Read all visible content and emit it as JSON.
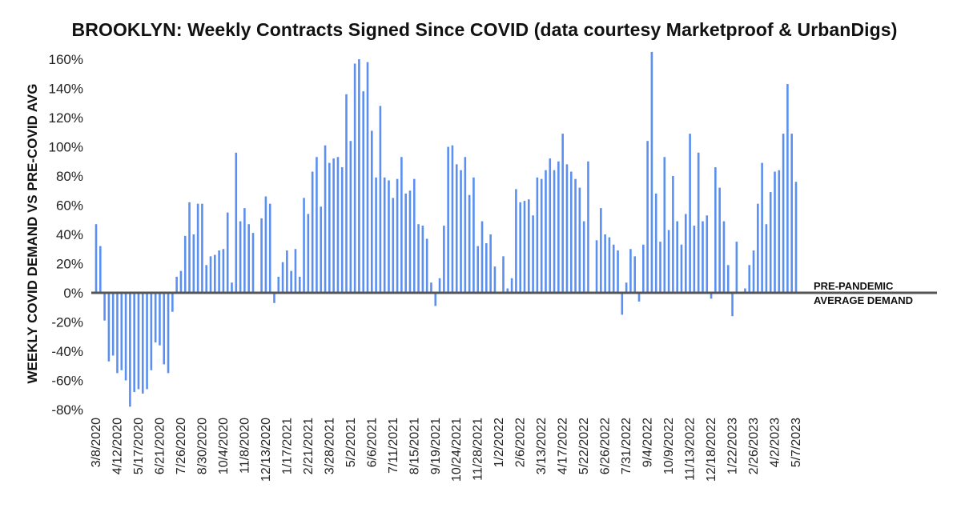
{
  "chart_data": {
    "type": "bar",
    "title": "BROOKLYN: Weekly Contracts Signed Since COVID (data courtesy Marketproof & UrbanDigs)",
    "ylabel": "WEEKLY COVID DEMAND VS PRE-COVID AVG",
    "xlabel": "",
    "ylim": [
      -80,
      165
    ],
    "y_ticks": [
      "160%",
      "140%",
      "120%",
      "100%",
      "80%",
      "60%",
      "40%",
      "20%",
      "0%",
      "-20%",
      "-40%",
      "-60%",
      "-80%"
    ],
    "y_tick_values": [
      160,
      140,
      120,
      100,
      80,
      60,
      40,
      20,
      0,
      -20,
      -40,
      -60,
      -80
    ],
    "x_tick_labels": [
      "3/8/2020",
      "4/12/2020",
      "5/17/2020",
      "6/21/2020",
      "7/26/2020",
      "8/30/2020",
      "10/4/2020",
      "11/8/2020",
      "12/13/2020",
      "1/17/2021",
      "2/21/2021",
      "3/28/2021",
      "5/2/2021",
      "6/6/2021",
      "7/11/2021",
      "8/15/2021",
      "9/19/2021",
      "10/24/2021",
      "11/28/2021",
      "1/2/2022",
      "2/6/2022",
      "3/13/2022",
      "4/17/2022",
      "5/22/2022",
      "6/26/2022",
      "7/31/2022",
      "9/4/2022",
      "10/9/2022",
      "11/13/2022",
      "12/18/2022",
      "1/22/2023",
      "2/26/2023",
      "4/2/2023",
      "5/7/2023"
    ],
    "weeks_per_tick": 5,
    "reference_line": {
      "value": 0,
      "label_lines": [
        "PRE-PANDEMIC",
        "AVERAGE DEMAND"
      ]
    },
    "bar_color": "#5b8ff0",
    "series": [
      {
        "values": [
          47,
          32,
          -19,
          -47,
          -43,
          -55,
          -53,
          -60,
          -78,
          -68,
          -66,
          -69,
          -66,
          -53,
          -34,
          -36,
          -49,
          -55,
          -13,
          11,
          15,
          39,
          62,
          40,
          61,
          61,
          19,
          25,
          26,
          29,
          30,
          55,
          7,
          96,
          49,
          58,
          47,
          41,
          0,
          51,
          66,
          61,
          -7,
          11,
          21,
          29,
          15,
          30,
          11,
          65,
          54,
          83,
          93,
          59,
          101,
          89,
          92,
          93,
          86,
          136,
          104,
          157,
          160,
          138,
          158,
          111,
          79,
          128,
          79,
          77,
          65,
          78,
          93,
          68,
          70,
          78,
          47,
          46,
          37,
          7,
          -9,
          10,
          46,
          100,
          101,
          88,
          84,
          93,
          67,
          79,
          32,
          49,
          34,
          40,
          18,
          0,
          25,
          3,
          10,
          71,
          62,
          63,
          64,
          53,
          79,
          78,
          84,
          92,
          84,
          90,
          109,
          88,
          83,
          78,
          72,
          49,
          90,
          0,
          36,
          58,
          40,
          38,
          33,
          29,
          -15,
          7,
          30,
          25,
          -6,
          33,
          104,
          165,
          68,
          35,
          93,
          43,
          80,
          49,
          33,
          54,
          109,
          46,
          96,
          49,
          53,
          -4,
          86,
          72,
          49,
          19,
          -16,
          35,
          0,
          3,
          19,
          29,
          61,
          89,
          47,
          69,
          83,
          84,
          109,
          143,
          109,
          76
        ]
      }
    ]
  }
}
